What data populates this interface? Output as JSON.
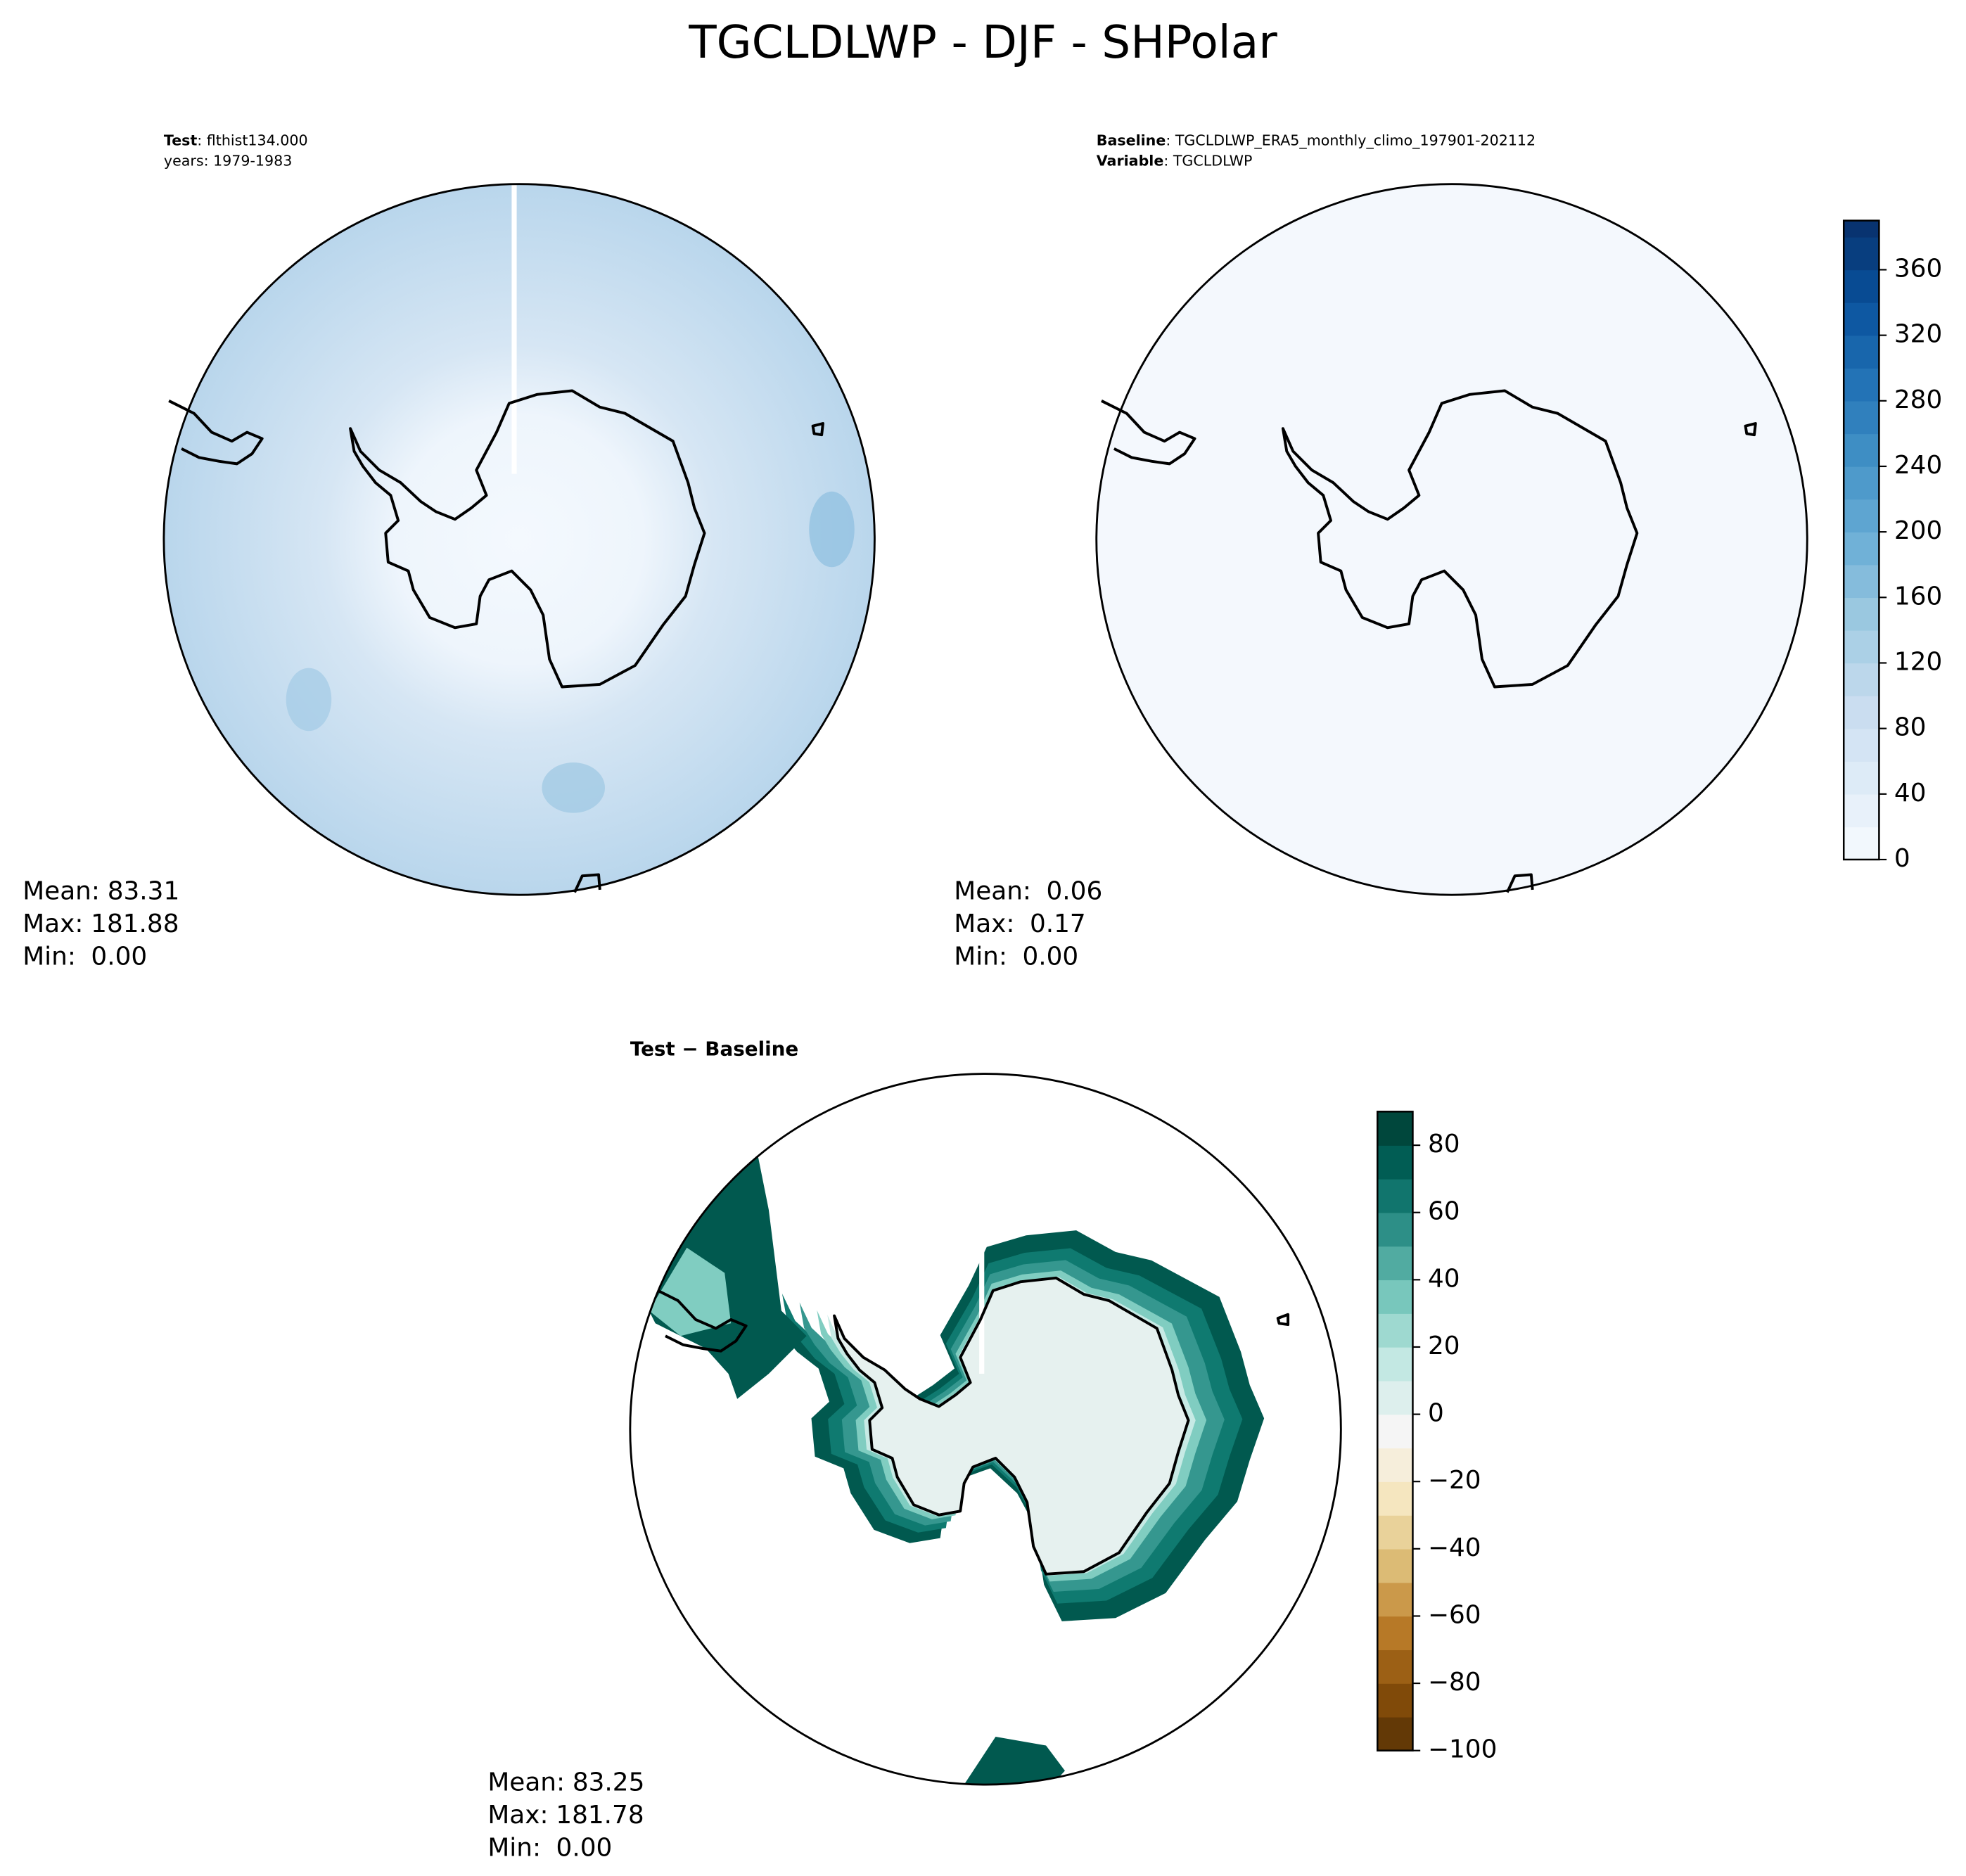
{
  "title": "TGCLDLWP - DJF - SHPolar",
  "panels": [
    {
      "header": [
        {
          "key": "Test",
          "text": ": flthist134.000"
        }
      ],
      "note": "years: 1979-1983",
      "stats": [
        {
          "label": "Mean:",
          "value": "83.31"
        },
        {
          "label": "Max:",
          "value": "181.88"
        },
        {
          "label": "Min:",
          "value": "0.00"
        }
      ]
    },
    {
      "header": [
        {
          "key": "Baseline",
          "text": ": TGCLDLWP_ERA5_monthly_climo_197901-202112"
        },
        {
          "key": "Variable",
          "text": ": TGCLDLWP"
        }
      ],
      "stats": [
        {
          "label": "Mean:",
          "value": "0.06"
        },
        {
          "label": "Max:",
          "value": "0.17"
        },
        {
          "label": "Min:",
          "value": "0.00"
        }
      ]
    },
    {
      "title": "Test − Baseline",
      "stats": [
        {
          "label": "Mean:",
          "value": "83.25"
        },
        {
          "label": "Max:",
          "value": "181.78"
        },
        {
          "label": "Min:",
          "value": "0.00"
        }
      ]
    }
  ],
  "colorbars": [
    {
      "lim": [
        0,
        390
      ],
      "levels": [
        0,
        20,
        40,
        60,
        80,
        100,
        120,
        140,
        160,
        180,
        200,
        220,
        240,
        260,
        280,
        300,
        320,
        340,
        360,
        380
      ],
      "ticks": [
        0,
        40,
        80,
        120,
        160,
        200,
        240,
        280,
        320,
        360
      ],
      "colors": [
        "#f7fbff",
        "#deebf7",
        "#c6dbef",
        "#9ecae1",
        "#6baed6",
        "#4292c6",
        "#2171b5",
        "#08519c",
        "#08306b"
      ]
    },
    {
      "lim": [
        -100,
        90
      ],
      "levels": [
        -100,
        -90,
        -80,
        -70,
        -60,
        -50,
        -40,
        -30,
        -20,
        -10,
        0,
        10,
        20,
        30,
        40,
        50,
        60,
        70,
        80
      ],
      "ticks": [
        {
          "value": -100,
          "label": "−100"
        },
        {
          "value": -80,
          "label": "−80"
        },
        {
          "value": -60,
          "label": "−60"
        },
        {
          "value": -40,
          "label": "−40"
        },
        {
          "value": -20,
          "label": "−20"
        },
        0,
        20,
        40,
        60,
        80
      ],
      "colors": [
        "#543005",
        "#8c510a",
        "#bf812d",
        "#dfc27d",
        "#f6e8c3",
        "#f5f5f5",
        "#c7eae5",
        "#80cdc1",
        "#35978f",
        "#01665e",
        "#003c30"
      ]
    }
  ]
}
